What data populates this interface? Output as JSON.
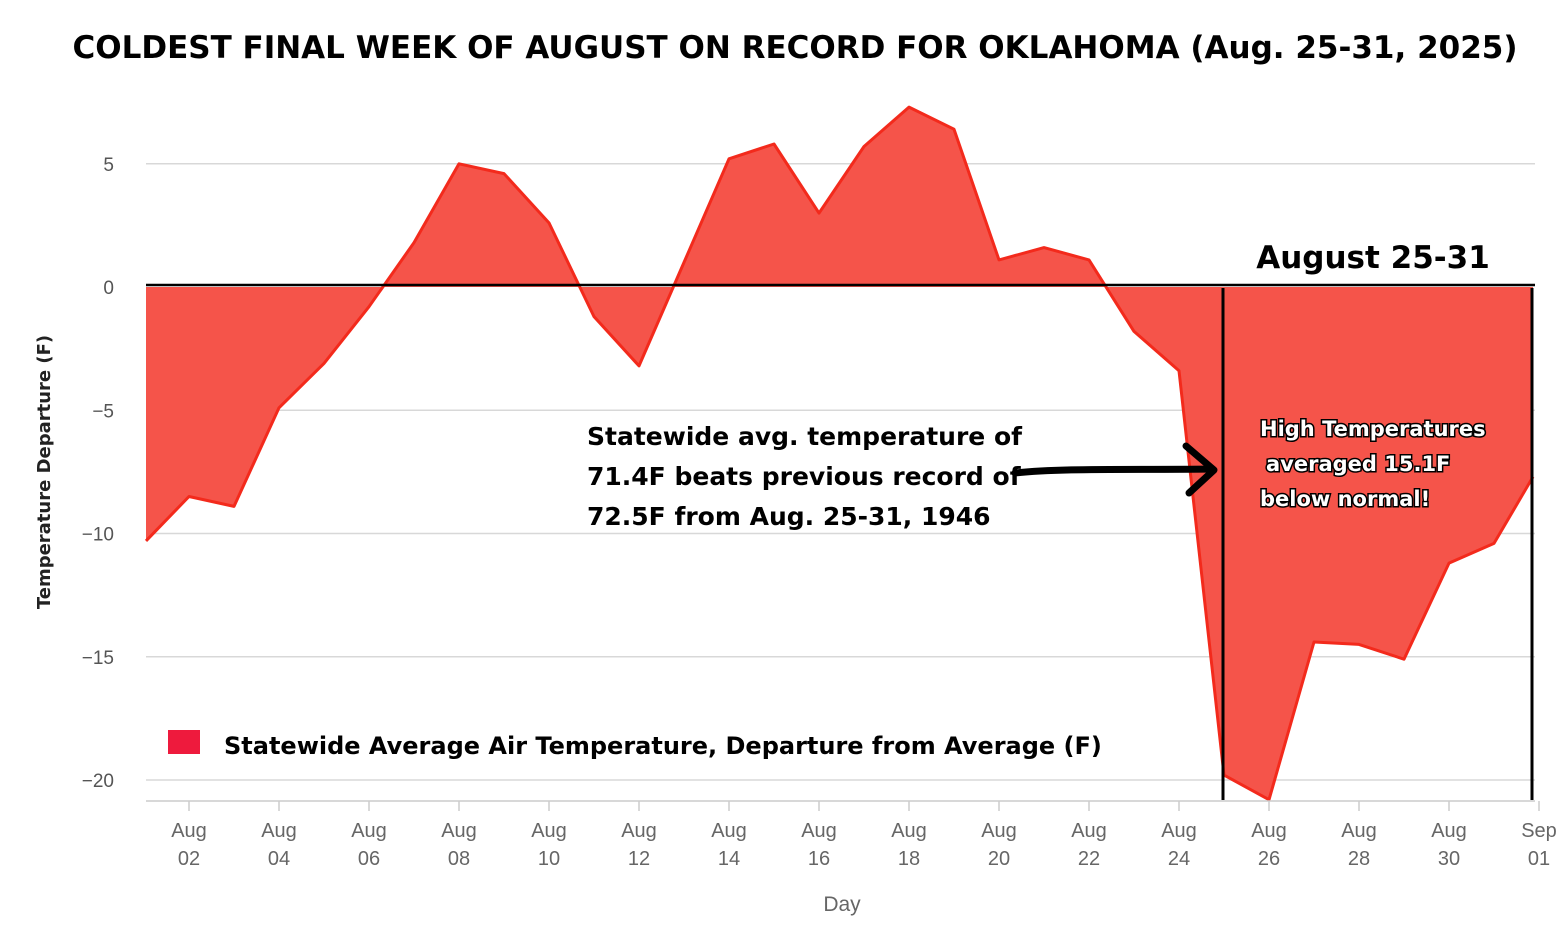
{
  "chart_data": {
    "type": "area",
    "title": "COLDEST FINAL WEEK OF AUGUST ON RECORD FOR OKLAHOMA (Aug. 25-31, 2025)",
    "xlabel": "Day",
    "ylabel": "Temperature Departure (F)",
    "ylim": [
      -21,
      7.5
    ],
    "yticks": [
      5,
      0,
      -5,
      -10,
      -15,
      -20
    ],
    "ytick_labels": [
      "5",
      "0",
      "−5",
      "−10",
      "−15",
      "−20"
    ],
    "grid": true,
    "legend_position": "bottom-left",
    "x": [
      "Aug 01",
      "Aug 02",
      "Aug 03",
      "Aug 04",
      "Aug 05",
      "Aug 06",
      "Aug 07",
      "Aug 08",
      "Aug 09",
      "Aug 10",
      "Aug 11",
      "Aug 12",
      "Aug 13",
      "Aug 14",
      "Aug 15",
      "Aug 16",
      "Aug 17",
      "Aug 18",
      "Aug 19",
      "Aug 20",
      "Aug 21",
      "Aug 22",
      "Aug 23",
      "Aug 24",
      "Aug 25",
      "Aug 26",
      "Aug 27",
      "Aug 28",
      "Aug 29",
      "Aug 30",
      "Aug 31",
      "Sep 01"
    ],
    "xticks": [
      {
        "month": "Aug",
        "day": "02",
        "index": 1
      },
      {
        "month": "Aug",
        "day": "04",
        "index": 3
      },
      {
        "month": "Aug",
        "day": "06",
        "index": 5
      },
      {
        "month": "Aug",
        "day": "08",
        "index": 7
      },
      {
        "month": "Aug",
        "day": "10",
        "index": 9
      },
      {
        "month": "Aug",
        "day": "12",
        "index": 11
      },
      {
        "month": "Aug",
        "day": "14",
        "index": 13
      },
      {
        "month": "Aug",
        "day": "16",
        "index": 15
      },
      {
        "month": "Aug",
        "day": "18",
        "index": 17
      },
      {
        "month": "Aug",
        "day": "20",
        "index": 19
      },
      {
        "month": "Aug",
        "day": "22",
        "index": 21
      },
      {
        "month": "Aug",
        "day": "24",
        "index": 23
      },
      {
        "month": "Aug",
        "day": "26",
        "index": 25
      },
      {
        "month": "Aug",
        "day": "28",
        "index": 27
      },
      {
        "month": "Aug",
        "day": "30",
        "index": 29
      },
      {
        "month": "Sep",
        "day": "01",
        "index": 31
      }
    ],
    "series": [
      {
        "name": "Statewide Average Air Temperature, Departure from Average (F)",
        "color": "#f5544a",
        "line_color": "#f32a1c",
        "values": [
          -10.3,
          -8.5,
          -8.9,
          -4.9,
          -3.1,
          -0.8,
          1.8,
          5.0,
          4.6,
          2.6,
          -1.2,
          -3.2,
          1.0,
          5.2,
          5.8,
          3.0,
          5.7,
          7.3,
          6.4,
          1.1,
          1.6,
          1.1,
          -1.8,
          -3.4,
          -19.8,
          -20.8,
          -14.4,
          -14.5,
          -15.1,
          -11.2,
          -10.4,
          -7.7
        ]
      }
    ],
    "annotations": {
      "week_label": "August 25-31",
      "week_start_index": 24,
      "week_end_index": 31,
      "record_note": [
        "Statewide avg. temperature of",
        "71.4F beats previous record of",
        "72.5F from Aug. 25-31, 1946"
      ],
      "high_note": [
        "High Temperatures",
        "averaged 15.1F",
        "below normal!"
      ]
    },
    "colors": {
      "legend_swatch": "#ee1a3d",
      "grid": "#d8d8d8",
      "axis": "#cccccc"
    }
  }
}
